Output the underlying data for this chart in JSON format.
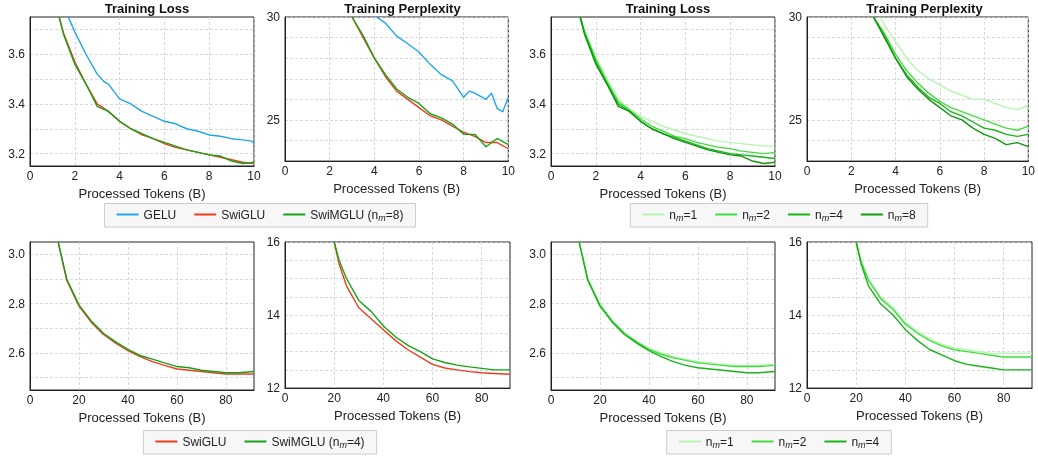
{
  "chart_data": [
    {
      "type": "line",
      "title": "Training Loss",
      "xlabel": "Processed Tokens (B)",
      "xlim": [
        0,
        10
      ],
      "xticks": [
        0,
        2,
        4,
        6,
        8,
        10
      ],
      "ylim": [
        3.15,
        3.75
      ],
      "yticks": [
        3.2,
        {
          "value": 3.3,
          "label": null
        },
        3.4,
        {
          "value": 3.5,
          "label": null
        },
        3.6,
        {
          "value": 3.7,
          "label": null
        }
      ],
      "grid": true,
      "legend": "bottom",
      "series": [
        {
          "name": "GELU",
          "color": "#1ea7e8",
          "x": [
            1.71,
            2,
            2.5,
            3,
            3.3,
            3.5,
            4,
            4.5,
            5,
            5.5,
            6,
            6.5,
            7,
            7.5,
            8,
            8.5,
            9,
            9.5,
            9.9,
            10
          ],
          "values": [
            3.75,
            3.69,
            3.6,
            3.52,
            3.49,
            3.48,
            3.42,
            3.4,
            3.37,
            3.35,
            3.33,
            3.32,
            3.3,
            3.29,
            3.275,
            3.27,
            3.26,
            3.255,
            3.25,
            3.24
          ]
        },
        {
          "name": "SwiGLU",
          "color": "#f03c1e",
          "x": [
            1.3,
            1.5,
            2,
            2.5,
            3,
            3.5,
            4,
            4.5,
            5,
            5.5,
            6,
            6.5,
            7,
            7.5,
            8,
            8.5,
            9,
            9.5,
            10
          ],
          "values": [
            3.75,
            3.685,
            3.57,
            3.48,
            3.4,
            3.37,
            3.33,
            3.3,
            3.275,
            3.26,
            3.24,
            3.225,
            3.215,
            3.205,
            3.195,
            3.185,
            3.175,
            3.165,
            3.16
          ]
        },
        {
          "name": "SwiMGLU (n$_{m}$=8)",
          "color": "#17a317",
          "x": [
            1.3,
            1.5,
            2,
            2.5,
            3,
            3.5,
            4,
            4.5,
            5,
            5.5,
            6,
            6.5,
            7,
            7.5,
            8,
            8.5,
            9,
            9.5,
            10
          ],
          "values": [
            3.75,
            3.68,
            3.56,
            3.48,
            3.39,
            3.37,
            3.33,
            3.3,
            3.28,
            3.26,
            3.245,
            3.23,
            3.215,
            3.205,
            3.195,
            3.19,
            3.17,
            3.16,
            3.165
          ]
        }
      ]
    },
    {
      "type": "line",
      "title": "Training Perplexity",
      "xlabel": "Processed Tokens (B)",
      "xlim": [
        0,
        10
      ],
      "xticks": [
        0,
        2,
        4,
        6,
        8,
        10
      ],
      "ylim": [
        23,
        30
      ],
      "yticks": [
        {
          "value": 24,
          "label": null
        },
        25,
        {
          "value": 26,
          "label": null
        },
        {
          "value": 27,
          "label": null
        },
        {
          "value": 28,
          "label": null
        },
        {
          "value": 29,
          "label": null
        },
        30
      ],
      "grid": true,
      "series": [
        {
          "color": "#1ea7e8",
          "x": [
            4.1,
            4.5,
            5,
            5.5,
            6,
            6.5,
            7,
            7.5,
            8,
            8.25,
            8.5,
            9,
            9.25,
            9.5,
            9.75,
            10
          ],
          "values": [
            30,
            29.7,
            29.07,
            28.7,
            28.3,
            27.7,
            27.2,
            26.9,
            26.1,
            26.4,
            26.3,
            26,
            26.3,
            25.55,
            25.4,
            26.1
          ]
        },
        {
          "color": "#f03c1e",
          "x": [
            3,
            3.5,
            4,
            4.5,
            5,
            5.5,
            6,
            6.5,
            7,
            7.5,
            8,
            8.5,
            9,
            9.5,
            10
          ],
          "values": [
            30,
            29,
            28,
            27.1,
            26.4,
            26,
            25.6,
            25.2,
            25,
            24.7,
            24.4,
            24.2,
            23.9,
            23.9,
            23.6
          ]
        },
        {
          "color": "#17a317",
          "x": [
            3,
            3.5,
            4,
            4.5,
            5,
            5.5,
            6,
            6.5,
            7,
            7.5,
            8,
            8.5,
            9,
            9.5,
            10
          ],
          "values": [
            30,
            29.1,
            28,
            27.2,
            26.5,
            26.1,
            25.8,
            25.3,
            25.1,
            24.8,
            24.3,
            24.3,
            23.7,
            24.1,
            23.8
          ]
        }
      ]
    },
    {
      "type": "line",
      "title": "Training Loss",
      "xlabel": "Processed Tokens (B)",
      "xlim": [
        0,
        10
      ],
      "xticks": [
        0,
        2,
        4,
        6,
        8,
        10
      ],
      "ylim": [
        3.15,
        3.75
      ],
      "yticks": [
        3.2,
        {
          "value": 3.3,
          "label": null
        },
        3.4,
        {
          "value": 3.5,
          "label": null
        },
        3.6,
        {
          "value": 3.7,
          "label": null
        }
      ],
      "grid": true,
      "legend": "bottom",
      "series": [
        {
          "name": "n$_{m}$=1",
          "color": "#b5f5b0",
          "x": [
            1.3,
            1.5,
            2,
            2.5,
            3,
            3.5,
            4,
            4.5,
            5,
            5.5,
            6,
            6.5,
            7,
            7.5,
            8,
            8.5,
            9,
            9.5,
            10
          ],
          "values": [
            3.75,
            3.7,
            3.59,
            3.5,
            3.42,
            3.38,
            3.35,
            3.33,
            3.31,
            3.295,
            3.28,
            3.27,
            3.26,
            3.25,
            3.245,
            3.24,
            3.235,
            3.23,
            3.23
          ]
        },
        {
          "name": "n$_{m}$=2",
          "color": "#44dd40",
          "x": [
            1.3,
            1.5,
            2,
            2.5,
            3,
            3.5,
            4,
            4.5,
            5,
            5.5,
            6,
            6.5,
            7,
            7.5,
            8,
            8.5,
            9,
            9.5,
            10
          ],
          "values": [
            3.75,
            3.69,
            3.58,
            3.49,
            3.41,
            3.375,
            3.34,
            3.31,
            3.29,
            3.27,
            3.26,
            3.245,
            3.235,
            3.225,
            3.22,
            3.21,
            3.205,
            3.2,
            3.205
          ]
        },
        {
          "name": "n$_{m}$=4",
          "color": "#18b418",
          "x": [
            1.3,
            1.5,
            2,
            2.5,
            3,
            3.5,
            4,
            4.5,
            5,
            5.5,
            6,
            6.5,
            7,
            7.5,
            8,
            8.5,
            9,
            9.5,
            10
          ],
          "values": [
            3.75,
            3.685,
            3.57,
            3.48,
            3.4,
            3.37,
            3.33,
            3.3,
            3.28,
            3.265,
            3.25,
            3.235,
            3.22,
            3.21,
            3.2,
            3.195,
            3.19,
            3.185,
            3.18
          ]
        },
        {
          "name": "n$_{m}$=8",
          "color": "#0f980f",
          "x": [
            1.3,
            1.5,
            2,
            2.5,
            3,
            3.5,
            4,
            4.5,
            5,
            5.5,
            6,
            6.5,
            7,
            7.5,
            8,
            8.5,
            9,
            9.5,
            10
          ],
          "values": [
            3.75,
            3.68,
            3.56,
            3.48,
            3.39,
            3.37,
            3.33,
            3.3,
            3.28,
            3.26,
            3.245,
            3.23,
            3.215,
            3.205,
            3.195,
            3.19,
            3.17,
            3.16,
            3.165
          ]
        }
      ]
    },
    {
      "type": "line",
      "title": "Training Perplexity",
      "xlabel": "Processed Tokens (B)",
      "xlim": [
        0,
        10
      ],
      "xticks": [
        0,
        2,
        4,
        6,
        8,
        10
      ],
      "ylim": [
        23,
        30
      ],
      "yticks": [
        {
          "value": 24,
          "label": null
        },
        25,
        {
          "value": 26,
          "label": null
        },
        {
          "value": 27,
          "label": null
        },
        {
          "value": 28,
          "label": null
        },
        {
          "value": 29,
          "label": null
        },
        30
      ],
      "grid": true,
      "series": [
        {
          "color": "#b5f5b0",
          "x": [
            3.3,
            3.5,
            4,
            4.5,
            5,
            5.5,
            6,
            6.5,
            7,
            7.5,
            8,
            8.5,
            9,
            9.5,
            10
          ],
          "values": [
            30,
            29.6,
            28.8,
            28,
            27.4,
            27,
            26.7,
            26.4,
            26.2,
            26,
            26,
            25.8,
            25.6,
            25.5,
            25.7
          ]
        },
        {
          "color": "#44dd40",
          "x": [
            3,
            3.5,
            4,
            4.5,
            5,
            5.5,
            6,
            6.5,
            7,
            7.5,
            8,
            8.5,
            9,
            9.5,
            10
          ],
          "values": [
            30,
            29.2,
            28.2,
            27.4,
            26.8,
            26.3,
            25.9,
            25.6,
            25.4,
            25.2,
            25,
            24.8,
            24.6,
            24.5,
            24.7
          ]
        },
        {
          "color": "#18b418",
          "x": [
            3,
            3.5,
            4,
            4.5,
            5,
            5.5,
            6,
            6.5,
            7,
            7.5,
            8,
            8.5,
            9,
            9.5,
            10
          ],
          "values": [
            30,
            29.1,
            28,
            27.2,
            26.6,
            26.1,
            25.8,
            25.4,
            25.2,
            24.9,
            24.6,
            24.5,
            24.3,
            24.2,
            24.3
          ]
        },
        {
          "color": "#0f980f",
          "x": [
            3,
            3.5,
            4,
            4.5,
            5,
            5.5,
            6,
            6.5,
            7,
            7.5,
            8,
            8.5,
            9,
            9.5,
            10
          ],
          "values": [
            30,
            29,
            28,
            27.1,
            26.5,
            26,
            25.6,
            25.2,
            25,
            24.6,
            24.3,
            24.1,
            23.8,
            23.9,
            23.7
          ]
        }
      ]
    },
    {
      "type": "line",
      "xlabel": "Processed Tokens (B)",
      "xlim": [
        0,
        91.5
      ],
      "xticks": [
        0,
        20,
        40,
        60,
        80
      ],
      "ylim": [
        2.45,
        3.05
      ],
      "yticks": [
        {
          "value": 2.5,
          "label": null
        },
        2.6,
        {
          "value": 2.7,
          "label": null
        },
        2.8,
        {
          "value": 2.9,
          "label": null
        },
        {
          "value": 3,
          "label": "3.0"
        }
      ],
      "grid": true,
      "legend": "bottom",
      "series": [
        {
          "name": "SwiGLU",
          "color": "#f03c1e",
          "x": [
            11.5,
            15,
            20,
            25,
            30,
            35,
            40,
            45,
            50,
            55,
            60,
            65,
            70,
            75,
            80,
            85,
            91.5
          ],
          "values": [
            3.05,
            2.895,
            2.79,
            2.725,
            2.675,
            2.64,
            2.61,
            2.585,
            2.565,
            2.55,
            2.535,
            2.53,
            2.525,
            2.52,
            2.515,
            2.515,
            2.515
          ]
        },
        {
          "name": "SwiMGLU (n$_{m}$=4)",
          "color": "#17a317",
          "x": [
            11.5,
            15,
            20,
            25,
            30,
            35,
            40,
            45,
            50,
            55,
            60,
            65,
            70,
            75,
            80,
            85,
            91.5
          ],
          "values": [
            3.05,
            2.9,
            2.795,
            2.73,
            2.68,
            2.645,
            2.615,
            2.59,
            2.575,
            2.56,
            2.545,
            2.54,
            2.53,
            2.525,
            2.52,
            2.52,
            2.525
          ]
        }
      ]
    },
    {
      "type": "line",
      "xlabel": "Processed Tokens (B)",
      "xlim": [
        0,
        91.5
      ],
      "xticks": [
        0,
        20,
        40,
        60,
        80
      ],
      "ylim": [
        12,
        16
      ],
      "yticks": [
        12,
        {
          "value": 12.5,
          "label": null
        },
        {
          "value": 13,
          "label": null
        },
        {
          "value": 13.5,
          "label": null
        },
        14,
        {
          "value": 14.5,
          "label": null
        },
        {
          "value": 15,
          "label": null
        },
        {
          "value": 15.5,
          "label": null
        },
        16
      ],
      "grid": true,
      "series": [
        {
          "color": "#f03c1e",
          "x": [
            20,
            22,
            25,
            30,
            35,
            40,
            45,
            50,
            55,
            60,
            65,
            70,
            75,
            80,
            85,
            91.5
          ],
          "values": [
            16,
            15.4,
            14.8,
            14.2,
            13.9,
            13.6,
            13.3,
            13.05,
            12.85,
            12.65,
            12.55,
            12.5,
            12.45,
            12.42,
            12.4,
            12.38
          ]
        },
        {
          "color": "#17a317",
          "x": [
            20,
            22,
            25,
            30,
            35,
            40,
            45,
            50,
            55,
            60,
            65,
            70,
            75,
            80,
            85,
            91.5
          ],
          "values": [
            16,
            15.5,
            15,
            14.4,
            14.1,
            13.7,
            13.4,
            13.17,
            13,
            12.8,
            12.7,
            12.63,
            12.58,
            12.54,
            12.5,
            12.5
          ]
        }
      ]
    },
    {
      "type": "line",
      "xlabel": "Processed Tokens (B)",
      "xlim": [
        0,
        91.5
      ],
      "xticks": [
        0,
        20,
        40,
        60,
        80
      ],
      "ylim": [
        2.45,
        3.05
      ],
      "yticks": [
        {
          "value": 2.5,
          "label": null
        },
        2.6,
        {
          "value": 2.7,
          "label": null
        },
        2.8,
        {
          "value": 2.9,
          "label": null
        },
        {
          "value": 3,
          "label": "3.0"
        }
      ],
      "grid": true,
      "legend": "bottom",
      "series": [
        {
          "name": "n$_{m}$=1",
          "color": "#b5f5b0",
          "x": [
            11.5,
            15,
            20,
            25,
            30,
            35,
            40,
            45,
            50,
            55,
            60,
            65,
            70,
            75,
            80,
            85,
            91.5
          ],
          "values": [
            3.05,
            2.9,
            2.795,
            2.73,
            2.68,
            2.645,
            2.62,
            2.6,
            2.585,
            2.575,
            2.565,
            2.56,
            2.555,
            2.55,
            2.55,
            2.55,
            2.555
          ]
        },
        {
          "name": "n$_{m}$=2",
          "color": "#44dd40",
          "x": [
            11.5,
            15,
            20,
            25,
            30,
            35,
            40,
            45,
            50,
            55,
            60,
            65,
            70,
            75,
            80,
            85,
            91.5
          ],
          "values": [
            3.05,
            2.9,
            2.795,
            2.73,
            2.68,
            2.645,
            2.615,
            2.595,
            2.58,
            2.57,
            2.56,
            2.555,
            2.55,
            2.545,
            2.545,
            2.545,
            2.55
          ]
        },
        {
          "name": "n$_{m}$=4",
          "color": "#18b418",
          "x": [
            11.5,
            15,
            20,
            25,
            30,
            35,
            40,
            45,
            50,
            55,
            60,
            65,
            70,
            75,
            80,
            85,
            91.5
          ],
          "values": [
            3.05,
            2.895,
            2.79,
            2.725,
            2.675,
            2.64,
            2.61,
            2.585,
            2.565,
            2.55,
            2.54,
            2.535,
            2.53,
            2.525,
            2.52,
            2.52,
            2.525
          ]
        }
      ]
    },
    {
      "type": "line",
      "xlabel": "Processed Tokens (B)",
      "xlim": [
        0,
        91.5
      ],
      "xticks": [
        0,
        20,
        40,
        60,
        80
      ],
      "ylim": [
        12,
        16
      ],
      "yticks": [
        12,
        {
          "value": 12.5,
          "label": null
        },
        {
          "value": 13,
          "label": null
        },
        {
          "value": 13.5,
          "label": null
        },
        14,
        {
          "value": 14.5,
          "label": null
        },
        {
          "value": 15,
          "label": null
        },
        {
          "value": 15.5,
          "label": null
        },
        16
      ],
      "grid": true,
      "series": [
        {
          "color": "#b5f5b0",
          "x": [
            20,
            22,
            25,
            30,
            35,
            40,
            45,
            50,
            55,
            60,
            65,
            70,
            75,
            80,
            85,
            91.5
          ],
          "values": [
            16,
            15.5,
            15,
            14.5,
            14.2,
            13.8,
            13.55,
            13.35,
            13.2,
            13.1,
            13.05,
            13,
            12.95,
            12.95,
            12.95,
            12.95
          ]
        },
        {
          "color": "#44dd40",
          "x": [
            20,
            22,
            25,
            30,
            35,
            40,
            45,
            50,
            55,
            60,
            65,
            70,
            75,
            80,
            85,
            91.5
          ],
          "values": [
            16,
            15.45,
            14.95,
            14.45,
            14.15,
            13.75,
            13.5,
            13.3,
            13.15,
            13.05,
            13,
            12.95,
            12.9,
            12.85,
            12.85,
            12.85
          ]
        },
        {
          "color": "#18b418",
          "x": [
            20,
            22,
            25,
            30,
            35,
            40,
            45,
            50,
            55,
            60,
            65,
            70,
            75,
            80,
            85,
            91.5
          ],
          "values": [
            16,
            15.4,
            14.8,
            14.3,
            14,
            13.6,
            13.3,
            13.05,
            12.9,
            12.75,
            12.65,
            12.6,
            12.55,
            12.5,
            12.5,
            12.5
          ]
        }
      ]
    }
  ]
}
